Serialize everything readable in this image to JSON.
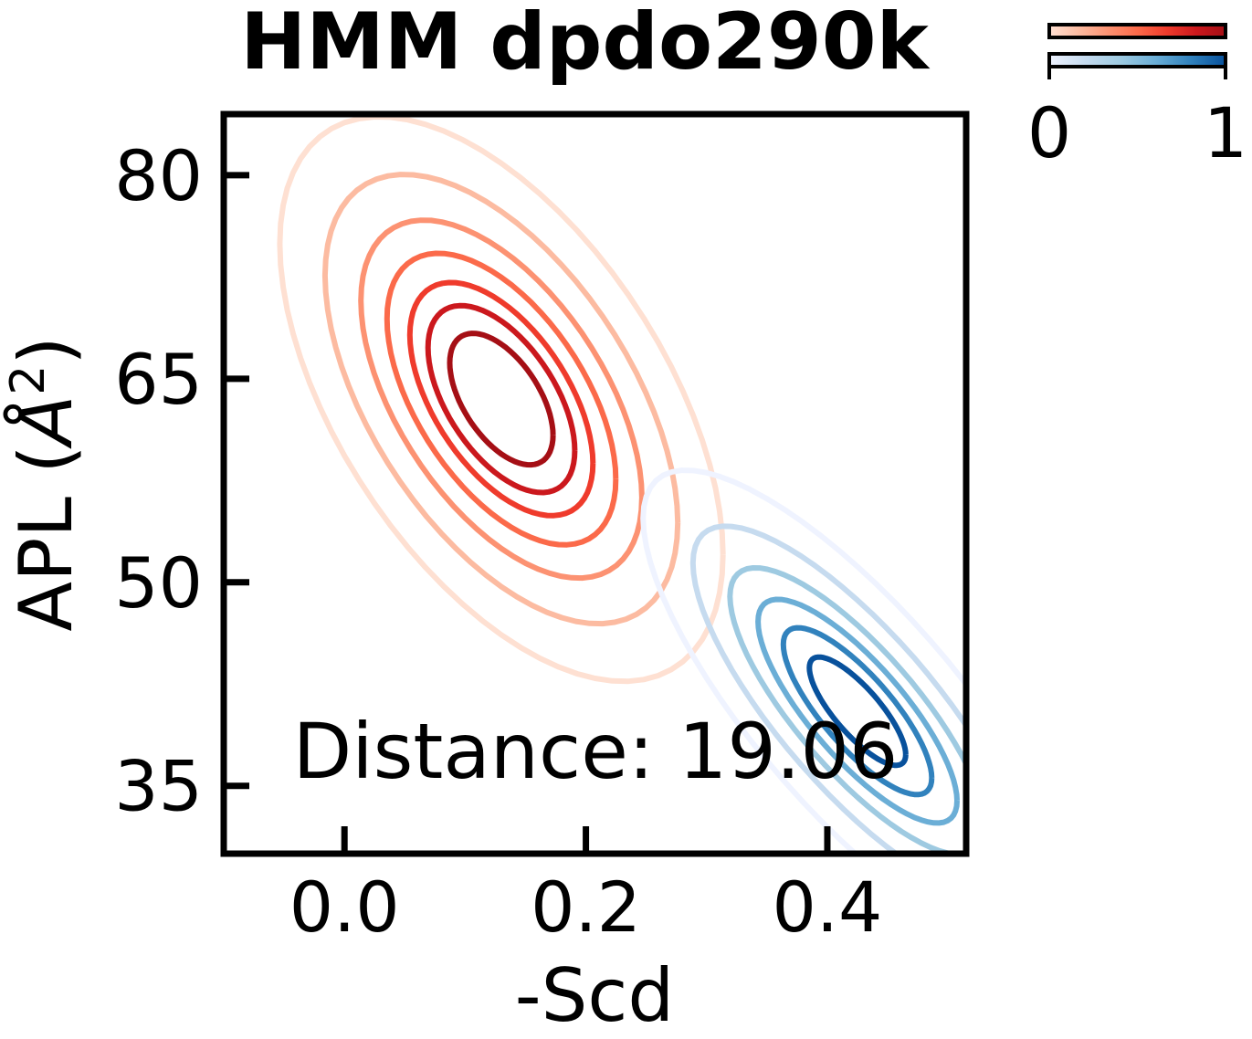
{
  "chart_data": {
    "type": "contour",
    "title": "HMM dpdo290k",
    "xlabel": "-Scd",
    "ylabel": "APL (Å²)",
    "ylabel_main": "APL (",
    "ylabel_symbol": "Å",
    "ylabel_sup": "2",
    "ylabel_close": ")",
    "xlim": [
      -0.1,
      0.515
    ],
    "ylim": [
      30.0,
      84.5
    ],
    "xticks": [
      0.0,
      0.2,
      0.4
    ],
    "xtick_labels": [
      "0.0",
      "0.2",
      "0.4"
    ],
    "yticks": [
      35,
      50,
      65,
      80
    ],
    "ytick_labels": [
      "35",
      "50",
      "65",
      "80"
    ],
    "annotation": "Distance: 19.06",
    "colorbar": {
      "ticks": [
        "0",
        "1"
      ],
      "reds": [
        "#fee0d2",
        "#fcbba1",
        "#fc9272",
        "#fb6a4a",
        "#ef3b2c",
        "#cb181d",
        "#a50f15"
      ],
      "blues": [
        "#eff3ff",
        "#c6dbef",
        "#9ecae1",
        "#6baed6",
        "#3182bd",
        "#08519c"
      ]
    },
    "series": [
      {
        "cmap": "Reds",
        "center": [
          0.13,
          63.5
        ],
        "sigma_x": 0.075,
        "sigma_y": 8.5,
        "correlation": -0.55,
        "levels": [
          0.05,
          0.15,
          0.3,
          0.45,
          0.6,
          0.72,
          0.85
        ],
        "level_colors": [
          "#fee0d2",
          "#fcbba1",
          "#fc9272",
          "#fb6a4a",
          "#ef3b2c",
          "#cb181d",
          "#a50f15"
        ]
      },
      {
        "cmap": "Blues",
        "center": [
          0.425,
          40.5
        ],
        "sigma_x": 0.07,
        "sigma_y": 7.0,
        "correlation": -0.8,
        "levels": [
          0.04,
          0.15,
          0.32,
          0.5,
          0.68,
          0.85
        ],
        "level_colors": [
          "#eff3ff",
          "#c6dbef",
          "#9ecae1",
          "#6baed6",
          "#3182bd",
          "#08519c"
        ]
      }
    ]
  }
}
